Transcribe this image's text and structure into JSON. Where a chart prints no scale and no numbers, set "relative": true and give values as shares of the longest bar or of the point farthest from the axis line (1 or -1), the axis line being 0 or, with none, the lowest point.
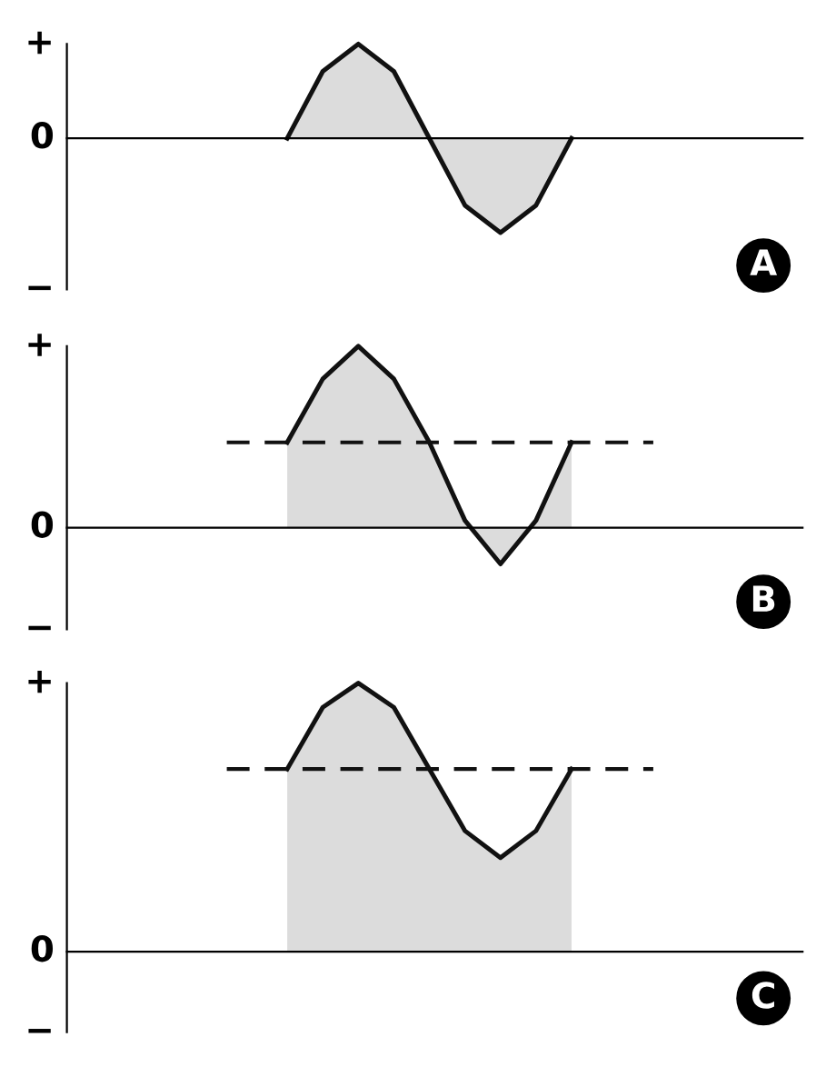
{
  "chart_data": [
    {
      "type": "area",
      "relative": true,
      "categories": [
        null,
        null,
        null,
        null,
        null,
        null,
        null,
        null,
        null,
        null,
        null,
        null,
        null,
        null,
        null,
        null,
        null,
        null,
        null,
        null,
        null
      ],
      "series": [
        {
          "color": "#111111",
          "values": [
            null,
            null,
            null,
            null,
            null,
            null,
            0,
            0.71,
            1,
            0.71,
            0,
            -0.71,
            -1,
            -0.71,
            0,
            null,
            null,
            null,
            null,
            null,
            null
          ]
        }
      ],
      "annotations": [
        "+",
        "0",
        "−",
        "A"
      ]
    },
    {
      "type": "area",
      "relative": true,
      "categories": [
        null,
        null,
        null,
        null,
        null,
        null,
        null,
        null,
        null,
        null,
        null,
        null,
        null,
        null,
        null,
        null,
        null,
        null,
        null,
        null,
        null
      ],
      "series": [
        {
          "color": "#111111",
          "values": [
            null,
            null,
            null,
            null,
            null,
            null,
            0.47,
            0.82,
            1,
            0.82,
            0.47,
            0.04,
            -0.2,
            0.04,
            0.47,
            null,
            null,
            null,
            null,
            null,
            null
          ]
        }
      ],
      "ref_lines": [
        {
          "axis": "y",
          "value": 0.47,
          "line_style": "dashed"
        }
      ],
      "annotations": [
        "+",
        "0",
        "−",
        "B"
      ]
    },
    {
      "type": "area",
      "relative": true,
      "categories": [
        null,
        null,
        null,
        null,
        null,
        null,
        null,
        null,
        null,
        null,
        null,
        null,
        null,
        null,
        null,
        null,
        null,
        null,
        null,
        null,
        null
      ],
      "series": [
        {
          "color": "#111111",
          "values": [
            null,
            null,
            null,
            null,
            null,
            null,
            0.68,
            0.91,
            1,
            0.91,
            0.68,
            0.45,
            0.35,
            0.45,
            0.68,
            null,
            null,
            null,
            null,
            null,
            null
          ]
        }
      ],
      "ref_lines": [
        {
          "axis": "y",
          "value": 0.68,
          "line_style": "dashed"
        }
      ],
      "annotations": [
        "+",
        "0",
        "−",
        "C"
      ]
    }
  ]
}
